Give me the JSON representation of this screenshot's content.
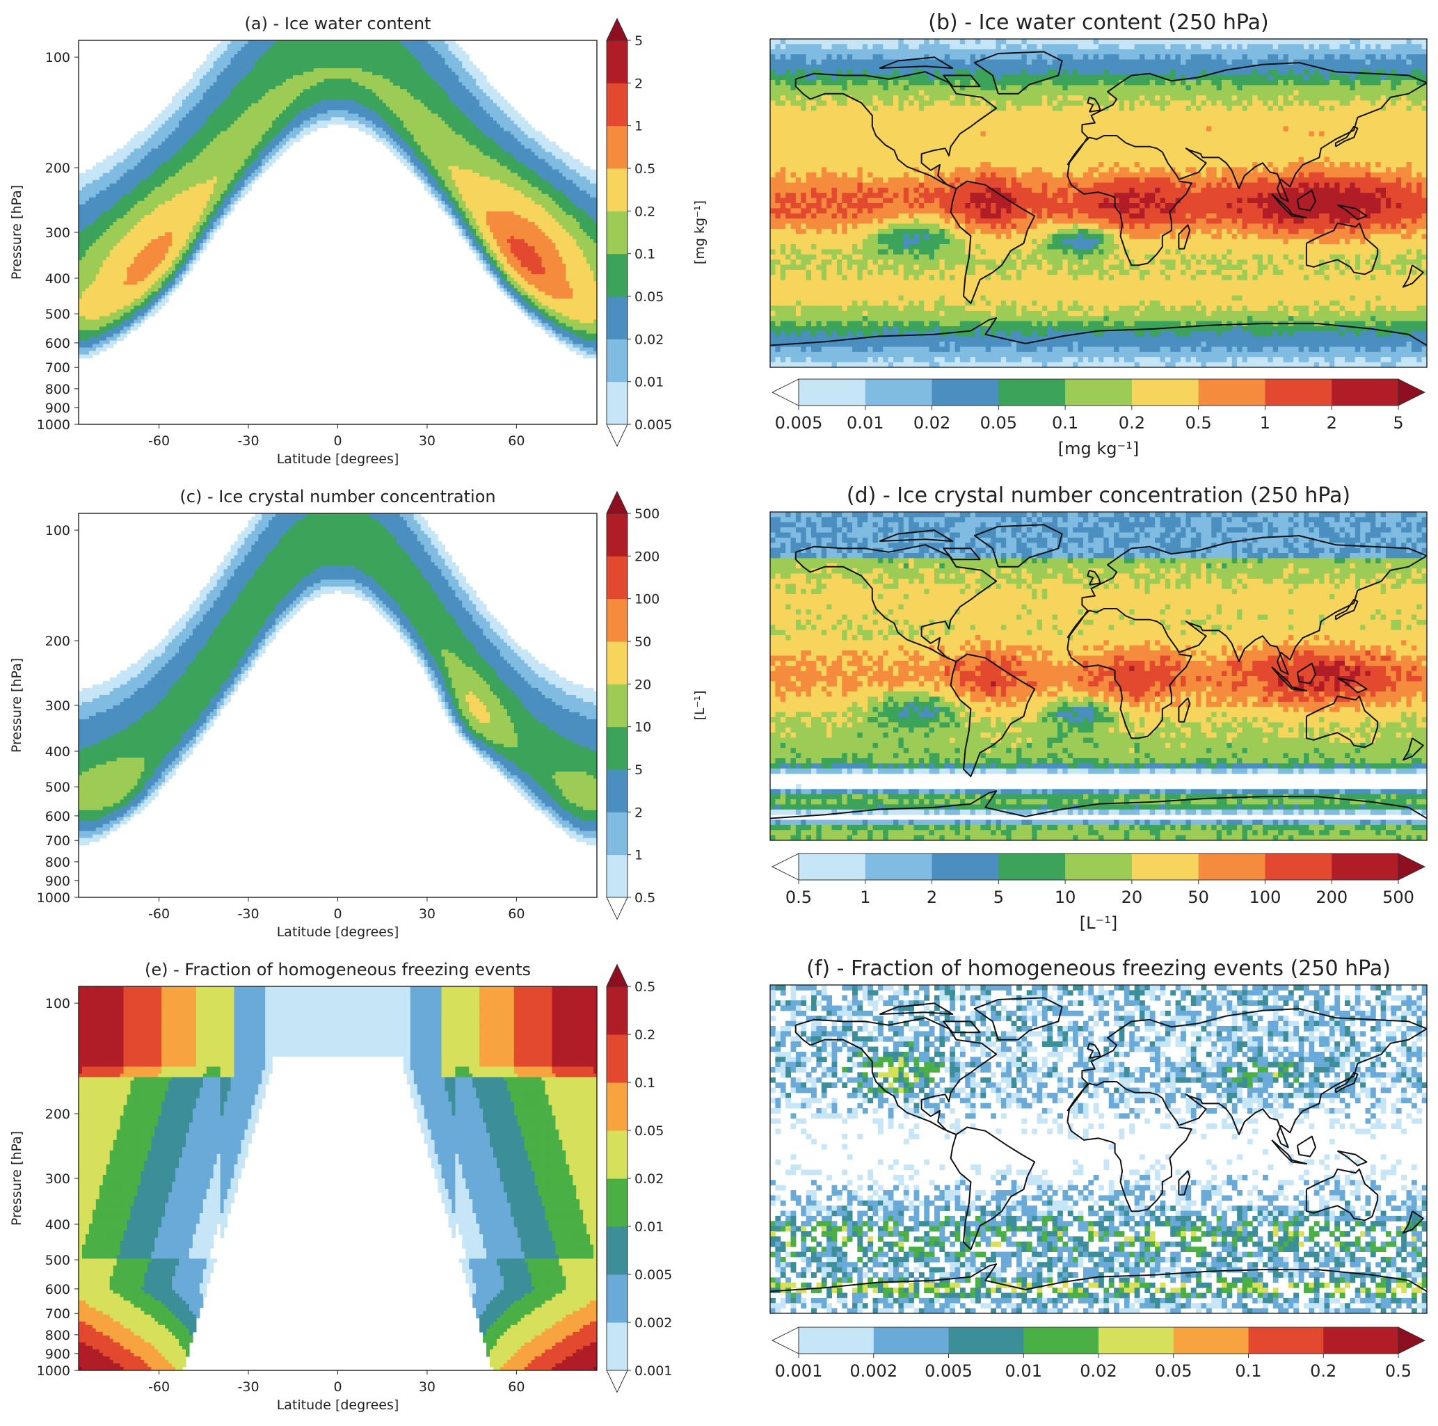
{
  "palettes": {
    "seq": [
      "#c6e6f7",
      "#80bbe2",
      "#4a8fc0",
      "#3ba45a",
      "#9ccc55",
      "#f7d55c",
      "#f58b3d",
      "#e2492f",
      "#b11d27"
    ],
    "frac": [
      "#c6e6f7",
      "#6aaad8",
      "#3c8e98",
      "#4aaf45",
      "#d7e05a",
      "#f6a340",
      "#e2492f",
      "#b11d27"
    ],
    "under": "#ffffff",
    "over": "#8e1020",
    "coast": "#111111"
  },
  "panels": [
    {
      "id": "a",
      "kind": "zonal",
      "title": "(a) - Ice water content",
      "xlabel": "Latitude [degrees]",
      "ylabel": "Pressure [hPa]",
      "xticks": [
        "-60",
        "-30",
        "0",
        "30",
        "60"
      ],
      "yticks": [
        "100",
        "200",
        "300",
        "400",
        "500",
        "600",
        "700",
        "800",
        "900",
        "1000"
      ],
      "xlim": [
        -87,
        87
      ],
      "ylim_hPa": [
        1000,
        90
      ],
      "yscale": "log",
      "colorbar": {
        "ticks": [
          "0.005",
          "0.01",
          "0.02",
          "0.05",
          "0.1",
          "0.2",
          "0.5",
          "1",
          "2",
          "5"
        ],
        "label": "[mg kg⁻¹]",
        "extend": "both"
      },
      "palette": "seq",
      "field": {
        "levels": [
          0.005,
          0.01,
          0.02,
          0.05,
          0.1,
          0.2,
          0.5,
          1,
          2,
          5
        ],
        "log_peak": 0.38,
        "features": [
          {
            "lat": 0,
            "p": 270,
            "amp": 0.48,
            "slat": 30,
            "sp": 0.45
          },
          {
            "lat": -55,
            "p": 480,
            "amp": 0.38,
            "slat": 24,
            "sp": 0.6
          },
          {
            "lat": 60,
            "p": 400,
            "amp": 0.36,
            "slat": 24,
            "sp": 0.6
          }
        ],
        "floor_lat_scale": 58,
        "top_fall": 0.6
      }
    },
    {
      "id": "b",
      "kind": "map",
      "title": "(b) - Ice water content (250 hPa)",
      "colorbar": {
        "ticks": [
          "0.005",
          "0.01",
          "0.02",
          "0.05",
          "0.1",
          "0.2",
          "0.5",
          "1",
          "2",
          "5"
        ],
        "label": "[mg kg⁻¹]",
        "extend": "both"
      },
      "palette": "seq",
      "field": {
        "levels": [
          0.005,
          0.01,
          0.02,
          0.05,
          0.1,
          0.2,
          0.5,
          1,
          2,
          5
        ],
        "pattern": "iwc",
        "seed": 11
      }
    },
    {
      "id": "c",
      "kind": "zonal",
      "title": "(c) - Ice crystal number concentration",
      "xlabel": "Latitude [degrees]",
      "ylabel": "Pressure [hPa]",
      "xticks": [
        "-60",
        "-30",
        "0",
        "30",
        "60"
      ],
      "yticks": [
        "100",
        "200",
        "300",
        "400",
        "500",
        "600",
        "700",
        "800",
        "900",
        "1000"
      ],
      "xlim": [
        -87,
        87
      ],
      "ylim_hPa": [
        1000,
        90
      ],
      "yscale": "log",
      "colorbar": {
        "ticks": [
          "0.5",
          "1",
          "2",
          "5",
          "10",
          "20",
          "50",
          "100",
          "200",
          "500"
        ],
        "label": "[L⁻¹]",
        "extend": "both"
      },
      "palette": "seq",
      "field": {
        "levels": [
          0.5,
          1,
          2,
          5,
          10,
          20,
          50,
          100,
          200,
          500
        ],
        "log_peak": 2.3,
        "features": [
          {
            "lat": 0,
            "p": 300,
            "amp": 0.3,
            "slat": 26,
            "sp": 0.4
          },
          {
            "lat": 38,
            "p": 370,
            "amp": 0.35,
            "slat": 14,
            "sp": 0.3
          },
          {
            "lat": -70,
            "p": 520,
            "amp": 0.1,
            "slat": 10,
            "sp": 0.2
          }
        ],
        "floor_lat_scale": 50,
        "top_fall": 0.9
      }
    },
    {
      "id": "d",
      "kind": "map",
      "title": "(d) - Ice crystal number concentration (250 hPa)",
      "colorbar": {
        "ticks": [
          "0.5",
          "1",
          "2",
          "5",
          "10",
          "20",
          "50",
          "100",
          "200",
          "500"
        ],
        "label": "[L⁻¹]",
        "extend": "both"
      },
      "palette": "seq",
      "field": {
        "levels": [
          0.5,
          1,
          2,
          5,
          10,
          20,
          50,
          100,
          200,
          500
        ],
        "pattern": "icnc",
        "seed": 23
      }
    },
    {
      "id": "e",
      "kind": "zonal",
      "title": "(e) - Fraction of homogeneous freezing events",
      "xlabel": "Latitude [degrees]",
      "ylabel": "Pressure [hPa]",
      "xticks": [
        "-60",
        "-30",
        "0",
        "30",
        "60"
      ],
      "yticks": [
        "100",
        "200",
        "300",
        "400",
        "500",
        "600",
        "700",
        "800",
        "900",
        "1000"
      ],
      "xlim": [
        -87,
        87
      ],
      "ylim_hPa": [
        1000,
        90
      ],
      "yscale": "log",
      "colorbar": {
        "ticks": [
          "0.001",
          "0.002",
          "0.005",
          "0.01",
          "0.02",
          "0.05",
          "0.1",
          "0.2",
          "0.5"
        ],
        "label": "",
        "extend": "both"
      },
      "palette": "frac",
      "field": {
        "levels": [
          0.001,
          0.002,
          0.005,
          0.01,
          0.02,
          0.05,
          0.1,
          0.2,
          0.5
        ],
        "pattern": "hom"
      }
    },
    {
      "id": "f",
      "kind": "map",
      "title": "(f) - Fraction of homogeneous freezing events (250 hPa)",
      "colorbar": {
        "ticks": [
          "0.001",
          "0.002",
          "0.005",
          "0.01",
          "0.02",
          "0.05",
          "0.1",
          "0.2",
          "0.5"
        ],
        "label": "",
        "extend": "both"
      },
      "palette": "frac",
      "field": {
        "levels": [
          0.001,
          0.002,
          0.005,
          0.01,
          0.02,
          0.05,
          0.1,
          0.2,
          0.5
        ],
        "pattern": "homap",
        "seed": 37
      }
    }
  ],
  "chart_data": [
    {
      "type": "heatmap",
      "title": "(a) - Ice water content",
      "xlabel": "Latitude [degrees]",
      "ylabel": "Pressure [hPa]",
      "xlim": [
        -87,
        87
      ],
      "ylim": [
        1000,
        90
      ],
      "yscale": "log",
      "colorbar_label": "[mg kg⁻¹]",
      "levels": [
        0.005,
        0.01,
        0.02,
        0.05,
        0.1,
        0.2,
        0.5,
        1,
        2,
        5
      ]
    },
    {
      "type": "heatmap",
      "title": "(b) - Ice water content (250 hPa)",
      "colorbar_label": "[mg kg⁻¹]",
      "levels": [
        0.005,
        0.01,
        0.02,
        0.05,
        0.1,
        0.2,
        0.5,
        1,
        2,
        5
      ]
    },
    {
      "type": "heatmap",
      "title": "(c) - Ice crystal number concentration",
      "xlabel": "Latitude [degrees]",
      "ylabel": "Pressure [hPa]",
      "xlim": [
        -87,
        87
      ],
      "ylim": [
        1000,
        90
      ],
      "yscale": "log",
      "colorbar_label": "[L⁻¹]",
      "levels": [
        0.5,
        1,
        2,
        5,
        10,
        20,
        50,
        100,
        200,
        500
      ]
    },
    {
      "type": "heatmap",
      "title": "(d) - Ice crystal number concentration (250 hPa)",
      "colorbar_label": "[L⁻¹]",
      "levels": [
        0.5,
        1,
        2,
        5,
        10,
        20,
        50,
        100,
        200,
        500
      ]
    },
    {
      "type": "heatmap",
      "title": "(e) - Fraction of homogeneous freezing events",
      "xlabel": "Latitude [degrees]",
      "ylabel": "Pressure [hPa]",
      "xlim": [
        -87,
        87
      ],
      "ylim": [
        1000,
        90
      ],
      "yscale": "log",
      "levels": [
        0.001,
        0.002,
        0.005,
        0.01,
        0.02,
        0.05,
        0.1,
        0.2,
        0.5
      ]
    },
    {
      "type": "heatmap",
      "title": "(f) - Fraction of homogeneous freezing events (250 hPa)",
      "levels": [
        0.001,
        0.002,
        0.005,
        0.01,
        0.02,
        0.05,
        0.1,
        0.2,
        0.5
      ]
    }
  ]
}
